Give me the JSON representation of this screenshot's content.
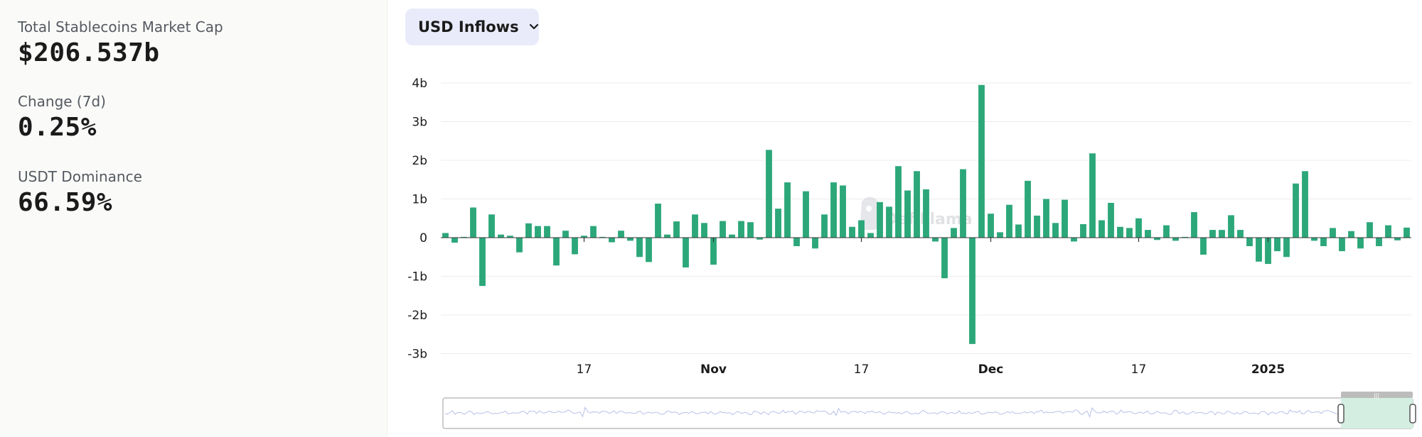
{
  "stats": {
    "total_mcap_label": "Total Stablecoins Market Cap",
    "total_mcap_value": "$206.537b",
    "change_label": "Change (7d)",
    "change_value": "0.25%",
    "dominance_label": "USDT Dominance",
    "dominance_value": "66.59%"
  },
  "dropdown": {
    "label": "USD Inflows",
    "icon": "chevron-down-icon"
  },
  "watermark": "DefiLlama",
  "colors": {
    "bar": "#2ca77a",
    "grid": "#ececec",
    "left_panel_bg": "#fafaf9",
    "dropdown_bg": "#e9ebfb",
    "brush_selection": "#d4eee2",
    "brush_line": "#b9c0e8"
  },
  "chart_data": {
    "type": "bar",
    "title": "",
    "xlabel": "",
    "ylabel": "",
    "ylim": [
      -3,
      4
    ],
    "y_ticks": [
      "4b",
      "3b",
      "2b",
      "1b",
      "0",
      "-1b",
      "-2b",
      "-3b"
    ],
    "x_ticks": [
      "17",
      "Nov",
      "17",
      "Dec",
      "17",
      "2025"
    ],
    "grid": "horizontal",
    "unit": "b USD",
    "series": [
      {
        "values": [
          0.12,
          -0.13,
          0.02,
          0.78,
          -1.25,
          0.6,
          0.08,
          0.05,
          -0.38,
          0.37,
          0.3,
          0.3,
          -0.72,
          0.18,
          -0.43,
          0.05,
          0.3,
          0.02,
          -0.12,
          0.18,
          -0.08,
          -0.5,
          -0.63,
          0.88,
          0.08,
          0.42,
          -0.77,
          0.6,
          0.38,
          -0.7,
          0.43,
          0.08,
          0.43,
          0.4,
          -0.05,
          2.27,
          0.75,
          1.43,
          -0.22,
          1.2,
          -0.28,
          0.6,
          1.43,
          1.35,
          0.28,
          0.45,
          0.12,
          0.92,
          0.8,
          1.85,
          1.22,
          1.72,
          1.25,
          -0.1,
          -1.05,
          0.25,
          1.77,
          -2.75,
          3.95,
          0.62,
          0.14,
          0.85,
          0.34,
          1.47,
          0.57,
          1.0,
          0.38,
          0.98,
          -0.1,
          0.35,
          2.18,
          0.45,
          0.9,
          0.28,
          0.25,
          0.5,
          0.2,
          -0.06,
          0.32,
          -0.08,
          0.02,
          0.66,
          -0.44,
          0.2,
          0.2,
          0.58,
          0.2,
          -0.22,
          -0.62,
          -0.68,
          -0.35,
          -0.5,
          1.4,
          1.72,
          -0.08,
          -0.22,
          0.25,
          -0.35,
          0.17,
          -0.28,
          0.4,
          -0.22,
          0.32,
          -0.07,
          0.26
        ]
      }
    ]
  }
}
